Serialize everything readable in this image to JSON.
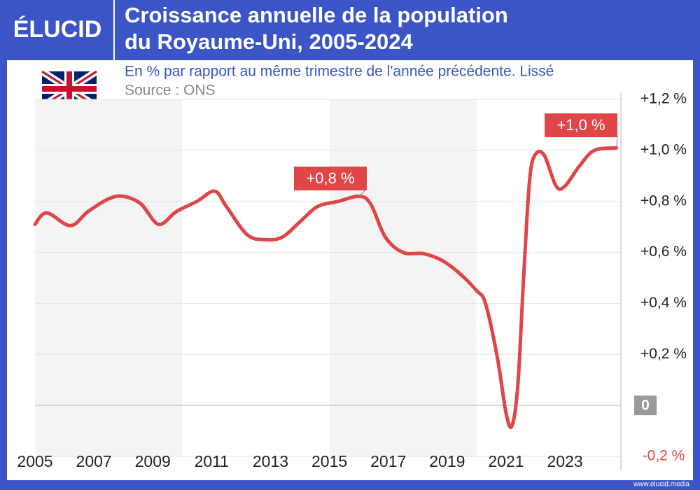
{
  "brand": "ÉLUCID",
  "footer": "www.elucid.media",
  "chart_data": {
    "type": "line",
    "title_lines": [
      "Croissance annuelle de la population",
      "du Royaume-Uni, 2005-2024"
    ],
    "subtitle": "En % par rapport au même trimestre de l'année précédente. Lissé",
    "source": "Source : ONS",
    "xlim": [
      2005,
      2024.9
    ],
    "xticks": [
      2005,
      2007,
      2009,
      2011,
      2013,
      2015,
      2017,
      2019,
      2021,
      2023
    ],
    "ylim": [
      -0.2,
      1.2
    ],
    "yticks": [
      {
        "value": 1.2,
        "label": "+1,2 %"
      },
      {
        "value": 1.0,
        "label": "+1,0 %"
      },
      {
        "value": 0.8,
        "label": "+0,8 %"
      },
      {
        "value": 0.6,
        "label": "+0,6 %"
      },
      {
        "value": 0.4,
        "label": "+0,4 %"
      },
      {
        "value": 0.2,
        "label": "+0,2 %"
      },
      0,
      {
        "value": -0.2,
        "label": "-0,2 %"
      }
    ],
    "grid": true,
    "shaded_spans": [
      [
        2005,
        2010
      ],
      [
        2015,
        2020
      ]
    ],
    "series": [
      {
        "name": "Royaume-Uni",
        "color": "#e04548",
        "x": [
          2005.0,
          2005.4,
          2006.2,
          2006.8,
          2007.5,
          2008.0,
          2008.6,
          2009.2,
          2009.8,
          2010.5,
          2011.1,
          2011.5,
          2012.2,
          2012.8,
          2013.4,
          2014.0,
          2014.6,
          2015.3,
          2016.0,
          2016.4,
          2016.9,
          2017.5,
          2018.2,
          2018.8,
          2019.4,
          2020.0,
          2020.3,
          2020.7,
          2021.0,
          2021.2,
          2021.4,
          2021.6,
          2021.8,
          2022.0,
          2022.3,
          2022.7,
          2023.0,
          2023.5,
          2024.0,
          2024.75
        ],
        "values": [
          0.71,
          0.755,
          0.705,
          0.76,
          0.81,
          0.82,
          0.79,
          0.71,
          0.76,
          0.8,
          0.84,
          0.78,
          0.67,
          0.65,
          0.66,
          0.72,
          0.78,
          0.8,
          0.82,
          0.79,
          0.66,
          0.6,
          0.595,
          0.57,
          0.52,
          0.45,
          0.4,
          0.19,
          -0.03,
          -0.08,
          0.08,
          0.51,
          0.885,
          0.985,
          0.98,
          0.86,
          0.86,
          0.94,
          1.0,
          1.01
        ]
      }
    ],
    "annotations": [
      {
        "text": "+0,8 %",
        "x": 2016.0,
        "y": 0.82
      },
      {
        "text": "+1,0 %",
        "x": 2024.75,
        "y": 1.01
      }
    ]
  }
}
